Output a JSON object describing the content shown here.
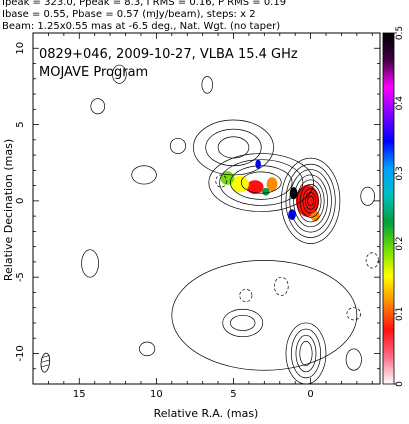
{
  "header": {
    "line1": "Ipeak = 323.0, Ppeak = 8.3, I RMS = 0.16, P RMS = 0.19",
    "line2": "Ibase = 0.55, Pbase = 0.57 (mJy/beam), steps: x 2",
    "line3": "Beam: 1.25x0.55 mas at -6.5 deg., Nat. Wgt. (no taper)"
  },
  "chart_data": {
    "type": "contour",
    "title": "0829+046, 2009-10-27, VLBA 15.4 GHz",
    "subtitle": "MOJAVE Program",
    "xlabel": "Relative R.A. (mas)",
    "ylabel": "Relative Decination (mas)",
    "xlim": [
      18,
      -4.5
    ],
    "ylim": [
      -12,
      11
    ],
    "x_ticks": [
      15,
      10,
      5,
      0
    ],
    "y_ticks": [
      10,
      5,
      0,
      -5,
      -10
    ],
    "colorbar": {
      "ticks": [
        0.5,
        0.4,
        0.3,
        0.2,
        0.1,
        0
      ],
      "range": [
        0,
        0.5
      ],
      "colors": [
        "#ffffff",
        "#ff6e8a",
        "#ff1010",
        "#ff8a00",
        "#ffff00",
        "#70e000",
        "#00a040",
        "#00c0c0",
        "#00a0ff",
        "#0000ff",
        "#8000ff",
        "#ff00ff",
        "#400040",
        "#000000"
      ]
    },
    "beam": {
      "major": 1.25,
      "minor": 0.55,
      "pa": -6.5,
      "center": [
        17.2,
        -10.6
      ]
    },
    "intensity_contours": [
      {
        "name": "core",
        "center": [
          0.0,
          0.0
        ],
        "levels": [
          {
            "rx": 1.9,
            "ry": 2.8
          },
          {
            "rx": 1.6,
            "ry": 2.4
          },
          {
            "rx": 1.35,
            "ry": 2.05
          },
          {
            "rx": 1.1,
            "ry": 1.7
          },
          {
            "rx": 0.88,
            "ry": 1.38
          },
          {
            "rx": 0.68,
            "ry": 1.08
          },
          {
            "rx": 0.5,
            "ry": 0.8
          },
          {
            "rx": 0.34,
            "ry": 0.55
          },
          {
            "rx": 0.2,
            "ry": 0.32
          }
        ]
      },
      {
        "name": "inner-jet",
        "center": [
          3.2,
          1.2
        ],
        "levels": [
          {
            "rx": 3.4,
            "ry": 1.9
          },
          {
            "rx": 2.7,
            "ry": 1.5
          },
          {
            "rx": 2.0,
            "ry": 1.1
          },
          {
            "rx": 1.3,
            "ry": 0.7
          }
        ]
      },
      {
        "name": "outer-jet-north",
        "center": [
          5.0,
          3.5
        ],
        "levels": [
          {
            "rx": 2.6,
            "ry": 1.8
          },
          {
            "rx": 1.8,
            "ry": 1.2
          },
          {
            "rx": 1.0,
            "ry": 0.7
          }
        ]
      },
      {
        "name": "southern-feature",
        "center": [
          0.3,
          -10.0
        ],
        "levels": [
          {
            "rx": 1.3,
            "ry": 2.0
          },
          {
            "rx": 0.95,
            "ry": 1.6
          },
          {
            "rx": 0.65,
            "ry": 1.2
          },
          {
            "rx": 0.4,
            "ry": 0.8
          }
        ]
      },
      {
        "name": "southern-knot",
        "center": [
          4.4,
          -8.0
        ],
        "levels": [
          {
            "rx": 1.3,
            "ry": 0.9
          },
          {
            "rx": 0.8,
            "ry": 0.5
          }
        ]
      },
      {
        "name": "southern-lobe",
        "center": [
          3.0,
          -7.5
        ],
        "levels": [
          {
            "rx": 6.0,
            "ry": 3.6
          }
        ]
      },
      {
        "name": "noise-1",
        "center": [
          12.4,
          8.3
        ],
        "levels": [
          {
            "rx": 0.45,
            "ry": 0.6
          }
        ]
      },
      {
        "name": "noise-2",
        "center": [
          13.8,
          6.2
        ],
        "levels": [
          {
            "rx": 0.45,
            "ry": 0.5
          }
        ]
      },
      {
        "name": "noise-3",
        "center": [
          8.6,
          3.6
        ],
        "levels": [
          {
            "rx": 0.5,
            "ry": 0.5
          }
        ]
      },
      {
        "name": "noise-4",
        "center": [
          6.7,
          7.6
        ],
        "levels": [
          {
            "rx": 0.35,
            "ry": 0.55
          }
        ]
      },
      {
        "name": "noise-5",
        "center": [
          10.8,
          1.7
        ],
        "levels": [
          {
            "rx": 0.8,
            "ry": 0.6
          }
        ]
      },
      {
        "name": "noise-6",
        "center": [
          14.3,
          -4.1
        ],
        "levels": [
          {
            "rx": 0.55,
            "ry": 0.9
          }
        ]
      },
      {
        "name": "noise-7",
        "center": [
          10.6,
          -9.7
        ],
        "levels": [
          {
            "rx": 0.5,
            "ry": 0.45
          }
        ]
      },
      {
        "name": "noise-8",
        "center": [
          -2.8,
          -10.4
        ],
        "levels": [
          {
            "rx": 0.5,
            "ry": 0.7
          }
        ]
      },
      {
        "name": "noise-9",
        "center": [
          -3.7,
          0.3
        ],
        "levels": [
          {
            "rx": 0.45,
            "ry": 0.6
          }
        ]
      }
    ],
    "negative_contours": [
      {
        "center": [
          1.9,
          -5.6
        ],
        "rx": 0.45,
        "ry": 0.6
      },
      {
        "center": [
          4.2,
          -6.2
        ],
        "rx": 0.4,
        "ry": 0.4
      },
      {
        "center": [
          -2.8,
          -7.4
        ],
        "rx": 0.45,
        "ry": 0.4
      },
      {
        "center": [
          5.8,
          1.3
        ],
        "rx": 0.35,
        "ry": 0.4
      },
      {
        "center": [
          -4.0,
          -3.9
        ],
        "rx": 0.4,
        "ry": 0.5
      }
    ],
    "polarization_bands": [
      {
        "center": [
          0.2,
          0.0
        ],
        "rx": 0.75,
        "ry": 1.05,
        "color": "#ff1010"
      },
      {
        "center": [
          -0.3,
          -1.0
        ],
        "rx": 0.3,
        "ry": 0.35,
        "color": "#ff8a00"
      },
      {
        "center": [
          1.1,
          0.5
        ],
        "rx": 0.25,
        "ry": 0.4,
        "color": "#000000"
      },
      {
        "center": [
          1.2,
          -0.9
        ],
        "rx": 0.25,
        "ry": 0.35,
        "color": "#0000ff"
      },
      {
        "center": [
          3.6,
          0.9
        ],
        "rx": 0.55,
        "ry": 0.45,
        "color": "#ff1010"
      },
      {
        "center": [
          4.6,
          1.1
        ],
        "rx": 0.6,
        "ry": 0.55,
        "color": "#ffff00"
      },
      {
        "center": [
          5.4,
          1.5
        ],
        "rx": 0.45,
        "ry": 0.45,
        "color": "#70e000"
      },
      {
        "center": [
          2.5,
          1.1
        ],
        "rx": 0.35,
        "ry": 0.45,
        "color": "#ff8a00"
      },
      {
        "center": [
          3.4,
          2.4
        ],
        "rx": 0.18,
        "ry": 0.3,
        "color": "#0000ff"
      },
      {
        "center": [
          2.9,
          0.6
        ],
        "rx": 0.25,
        "ry": 0.25,
        "color": "#00a040"
      }
    ]
  }
}
